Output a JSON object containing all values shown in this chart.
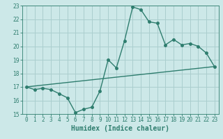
{
  "title": "",
  "xlabel": "Humidex (Indice chaleur)",
  "bg_color": "#cce8e8",
  "line_color": "#2e7d6e",
  "grid_color": "#aacece",
  "curve_x": [
    0,
    1,
    2,
    3,
    4,
    5,
    6,
    7,
    8,
    9,
    10,
    11,
    12,
    13,
    14,
    15,
    16,
    17,
    18,
    19,
    20,
    21,
    22,
    23
  ],
  "curve_y": [
    17.0,
    16.8,
    16.9,
    16.8,
    16.5,
    16.2,
    15.1,
    15.35,
    15.5,
    16.7,
    19.0,
    18.4,
    20.4,
    22.9,
    22.7,
    21.8,
    21.7,
    20.1,
    20.5,
    20.1,
    20.2,
    20.0,
    19.5,
    18.5
  ],
  "trend_x": [
    0,
    23
  ],
  "trend_y": [
    17.0,
    18.5
  ],
  "xlim": [
    -0.5,
    23.5
  ],
  "ylim": [
    15,
    23
  ],
  "xticks": [
    0,
    1,
    2,
    3,
    4,
    5,
    6,
    7,
    8,
    9,
    10,
    11,
    12,
    13,
    14,
    15,
    16,
    17,
    18,
    19,
    20,
    21,
    22,
    23
  ],
  "yticks": [
    15,
    16,
    17,
    18,
    19,
    20,
    21,
    22,
    23
  ],
  "marker_size": 2.5,
  "linewidth": 1.0,
  "xlabel_fontsize": 7,
  "tick_fontsize": 5.5
}
